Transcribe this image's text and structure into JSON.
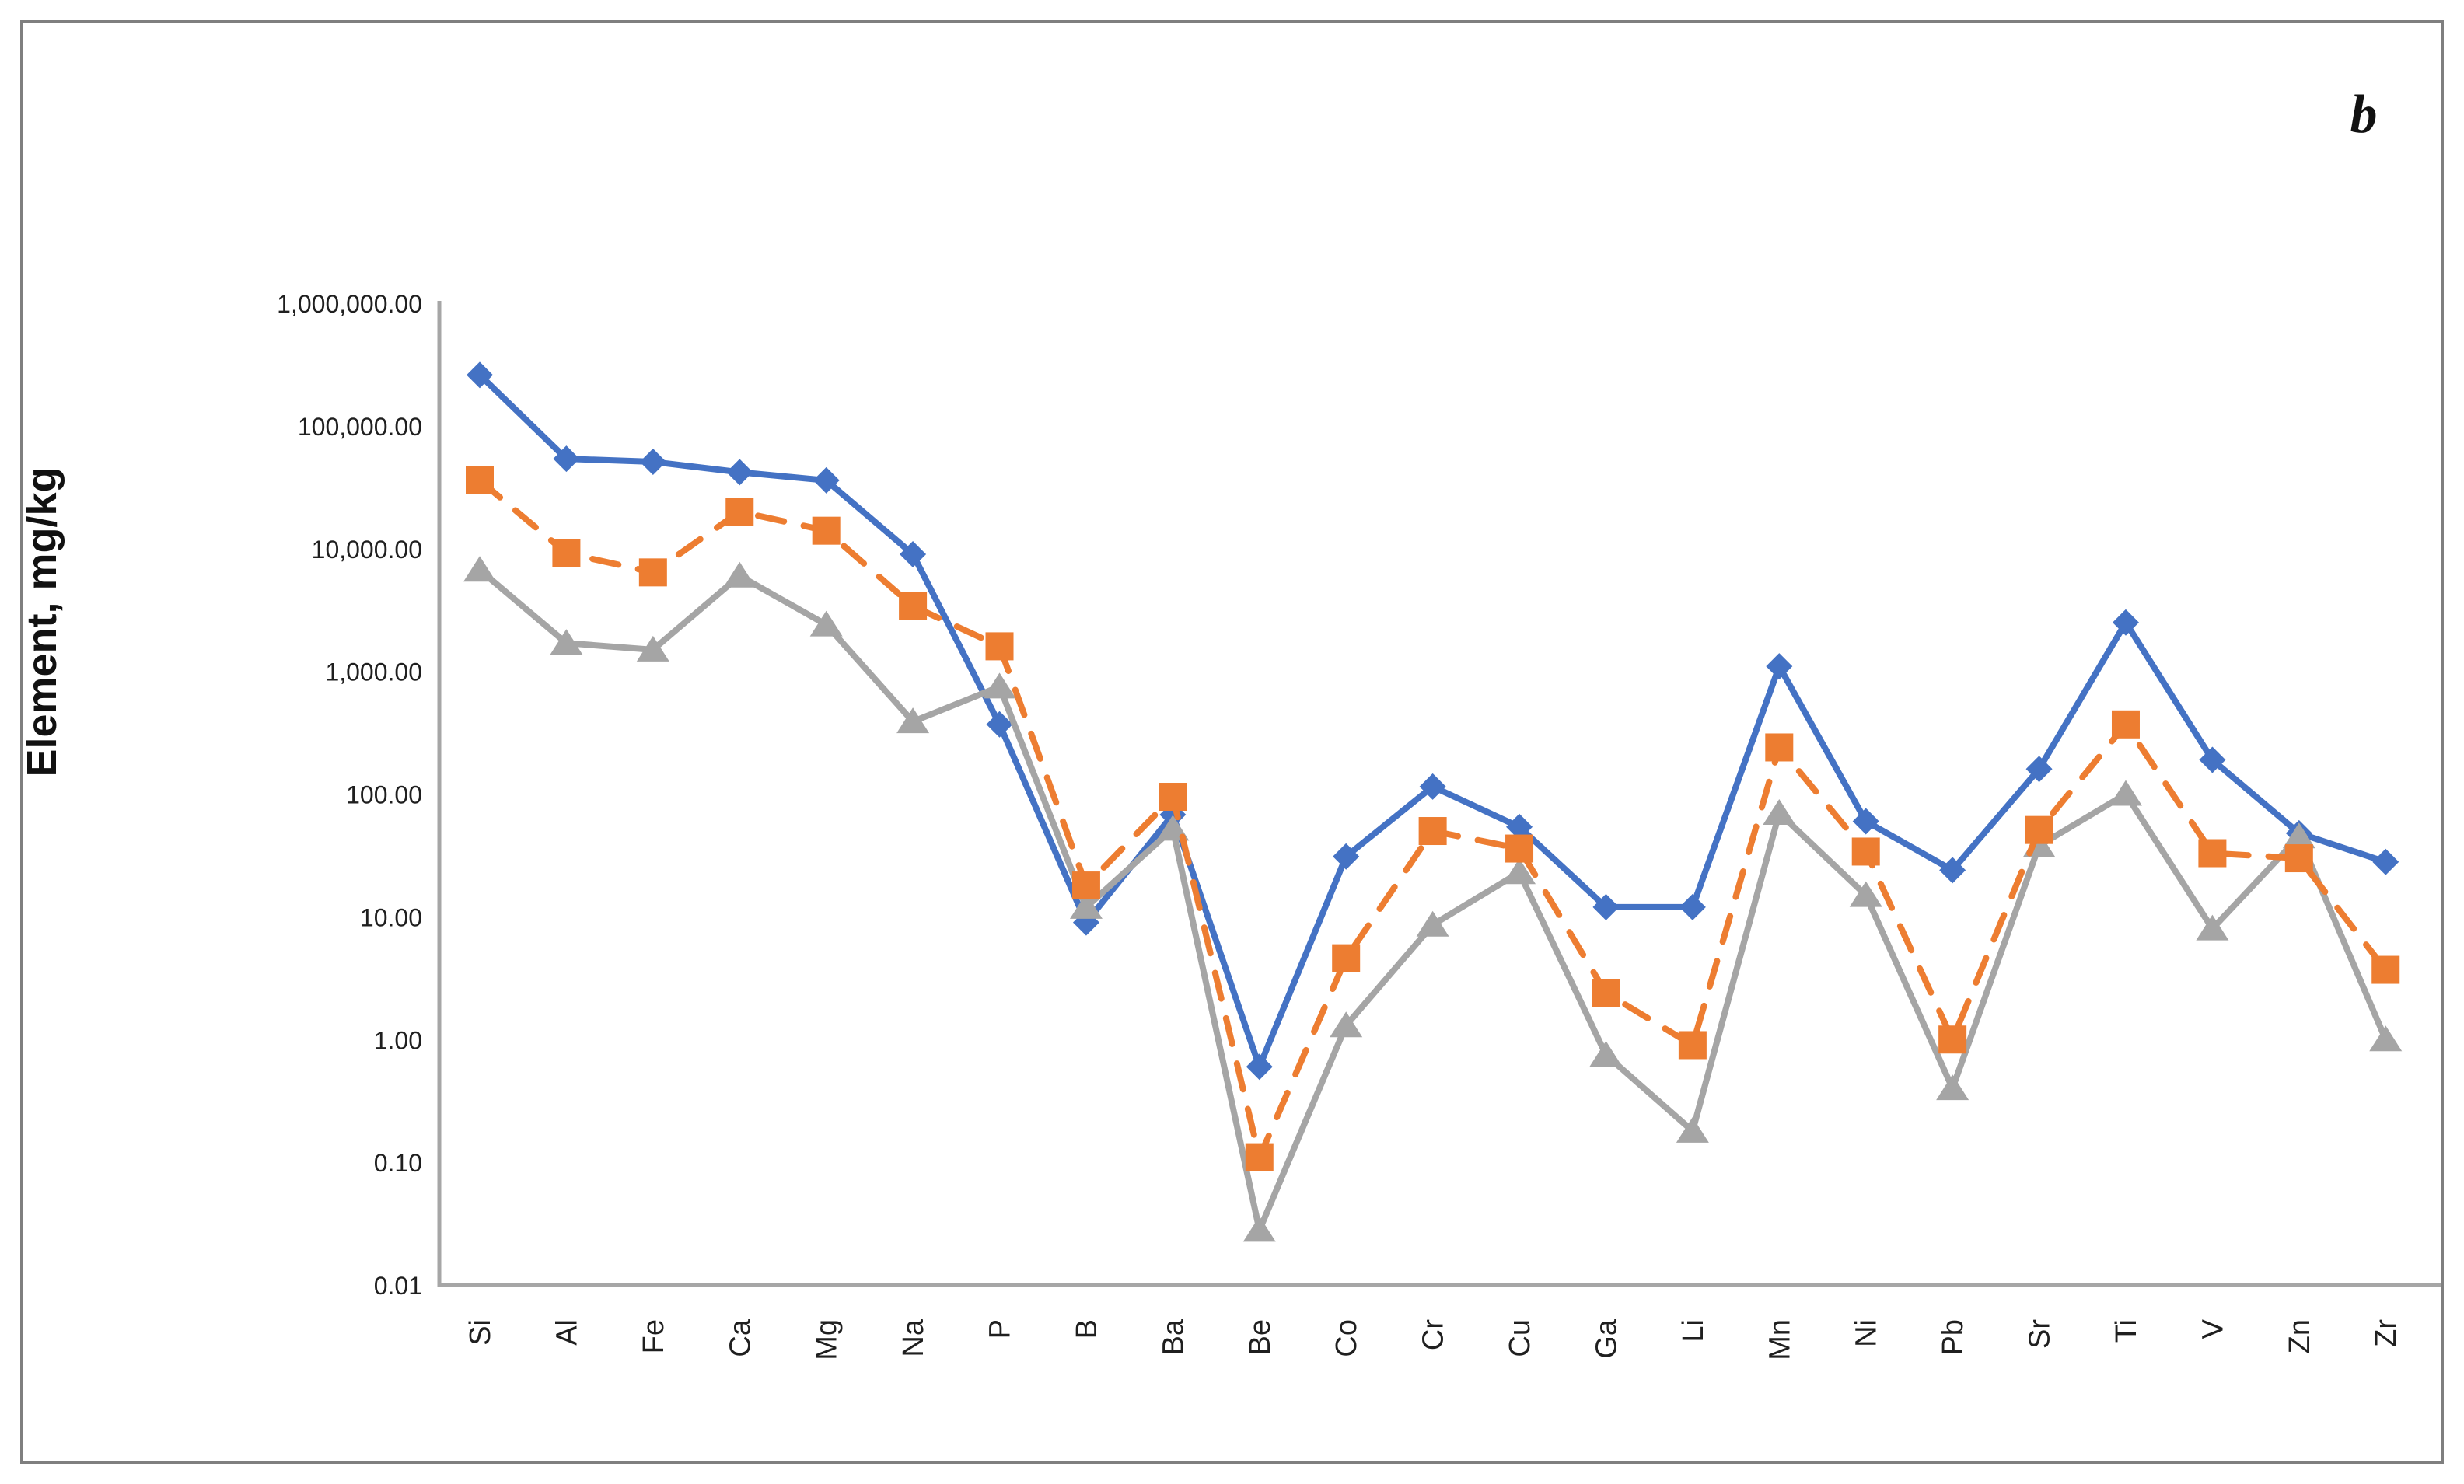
{
  "figure": {
    "panel_label": "b",
    "background_color": "#ffffff",
    "border_color": "#7f7f7f",
    "axis_color": "#a6a6a6",
    "text_color": "#1f1f1f"
  },
  "chart_data": {
    "type": "line",
    "title": "",
    "xlabel": "",
    "ylabel": "Element, mg/kg",
    "y_scale": "log",
    "ylim": [
      0.01,
      1000000
    ],
    "grid": "off",
    "legend": "none",
    "y_tick_labels": [
      "1,000,000.00",
      "100,000.00",
      "10,000.00",
      "1,000.00",
      "100.00",
      "10.00",
      "1.00",
      "0.10",
      "0.01"
    ],
    "y_tick_values": [
      1000000,
      100000,
      10000,
      1000,
      100,
      10,
      1,
      0.1,
      0.01
    ],
    "categories": [
      "Si",
      "Al",
      "Fe",
      "Ca",
      "Mg",
      "Na",
      "P",
      "B",
      "Ba",
      "Be",
      "Co",
      "Cr",
      "Cu",
      "Ga",
      "Li",
      "Mn",
      "Ni",
      "Pb",
      "Sr",
      "Ti",
      "V",
      "Zn",
      "Zr"
    ],
    "series": [
      {
        "name": "series-blue",
        "marker": "diamond",
        "line_style": "solid",
        "color": "#4472C4",
        "values": [
          260000,
          54000,
          51000,
          42000,
          36000,
          9000,
          370,
          9,
          68,
          0.6,
          31,
          115,
          54,
          12,
          12,
          1100,
          60,
          24,
          160,
          2500,
          190,
          48,
          28
        ]
      },
      {
        "name": "series-orange",
        "marker": "square",
        "line_style": "dashed",
        "color": "#ED7D31",
        "values": [
          36000,
          9200,
          6400,
          20000,
          14000,
          3400,
          1600,
          18,
          95,
          0.11,
          4.6,
          50,
          36,
          2.4,
          0.9,
          240,
          34,
          1.0,
          51,
          370,
          33,
          30,
          3.7
        ]
      },
      {
        "name": "series-gray",
        "marker": "triangle",
        "line_style": "solid",
        "color": "#A5A5A5",
        "values": [
          6700,
          1700,
          1500,
          6000,
          2400,
          390,
          750,
          12,
          52,
          0.028,
          1.3,
          8.6,
          23,
          0.75,
          0.18,
          70,
          15,
          0.4,
          38,
          100,
          8,
          45,
          1.0
        ]
      }
    ]
  }
}
